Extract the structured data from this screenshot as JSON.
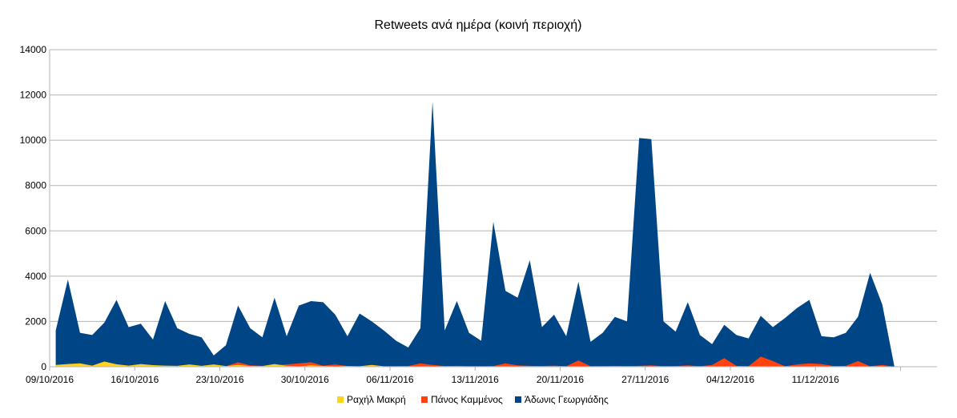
{
  "chart_data": {
    "type": "area",
    "stacking": "overlapping",
    "title": "Retweets ανά ημέρα (κοινή περιοχή)",
    "xlabel": "",
    "ylabel": "",
    "ylim": [
      0,
      14000
    ],
    "y_ticks": [
      0,
      2000,
      4000,
      6000,
      8000,
      10000,
      12000,
      14000
    ],
    "grid": "horizontal",
    "legend_position": "bottom",
    "x_start": "09/10/2016",
    "x_end": "20/12/2016",
    "x_tick_labels": [
      "09/10/2016",
      "16/10/2016",
      "23/10/2016",
      "30/10/2016",
      "06/11/2016",
      "13/11/2016",
      "20/11/2016",
      "27/11/2016",
      "04/12/2016",
      "11/12/2016"
    ],
    "series": [
      {
        "name": "Άδωνις Γεωργιάδης",
        "color": "#004586",
        "values": [
          1600,
          3850,
          1500,
          1400,
          1950,
          2950,
          1750,
          1900,
          1200,
          2900,
          1700,
          1450,
          1300,
          500,
          950,
          2700,
          1700,
          1300,
          3050,
          1350,
          2700,
          2900,
          2850,
          2300,
          1350,
          2350,
          2000,
          1600,
          1150,
          850,
          1700,
          11700,
          1600,
          2900,
          1500,
          1150,
          6400,
          3350,
          3050,
          4700,
          1750,
          2300,
          1350,
          3750,
          1100,
          1500,
          2200,
          2000,
          10100,
          10050,
          2000,
          1550,
          2850,
          1400,
          1000,
          1850,
          1400,
          1250,
          2250,
          1750,
          2150,
          2600,
          2950,
          1350,
          1300,
          1500,
          2200,
          4150,
          2750,
          0
        ]
      },
      {
        "name": "Πάνος Καμμένος",
        "color": "#ff420e",
        "values": [
          0,
          50,
          30,
          20,
          40,
          60,
          30,
          40,
          20,
          30,
          30,
          30,
          20,
          10,
          20,
          200,
          60,
          40,
          60,
          100,
          150,
          200,
          50,
          100,
          30,
          20,
          30,
          20,
          20,
          30,
          150,
          80,
          30,
          40,
          20,
          20,
          30,
          150,
          60,
          40,
          30,
          50,
          20,
          280,
          20,
          30,
          40,
          30,
          40,
          60,
          20,
          30,
          60,
          20,
          80,
          380,
          40,
          20,
          450,
          250,
          20,
          100,
          150,
          120,
          30,
          40,
          250,
          20,
          80,
          0
        ]
      },
      {
        "name": "Ραχήλ Μακρή",
        "color": "#ffd320",
        "values": [
          80,
          120,
          150,
          50,
          230,
          110,
          50,
          120,
          70,
          50,
          40,
          100,
          40,
          100,
          30,
          80,
          30,
          30,
          120,
          40,
          20,
          60,
          30,
          20,
          30,
          20,
          80,
          20,
          20,
          20,
          20,
          20,
          20,
          20,
          20,
          20,
          20,
          20,
          20,
          20,
          20,
          20,
          20,
          20,
          20,
          20,
          20,
          20,
          20,
          20,
          20,
          20,
          20,
          20,
          20,
          20,
          20,
          20,
          20,
          20,
          20,
          20,
          20,
          20,
          20,
          20,
          20,
          20,
          20,
          0
        ]
      }
    ],
    "legend_order": [
      "Ραχήλ Μακρή",
      "Πάνος Καμμένος",
      "Άδωνις Γεωργιάδης"
    ]
  }
}
